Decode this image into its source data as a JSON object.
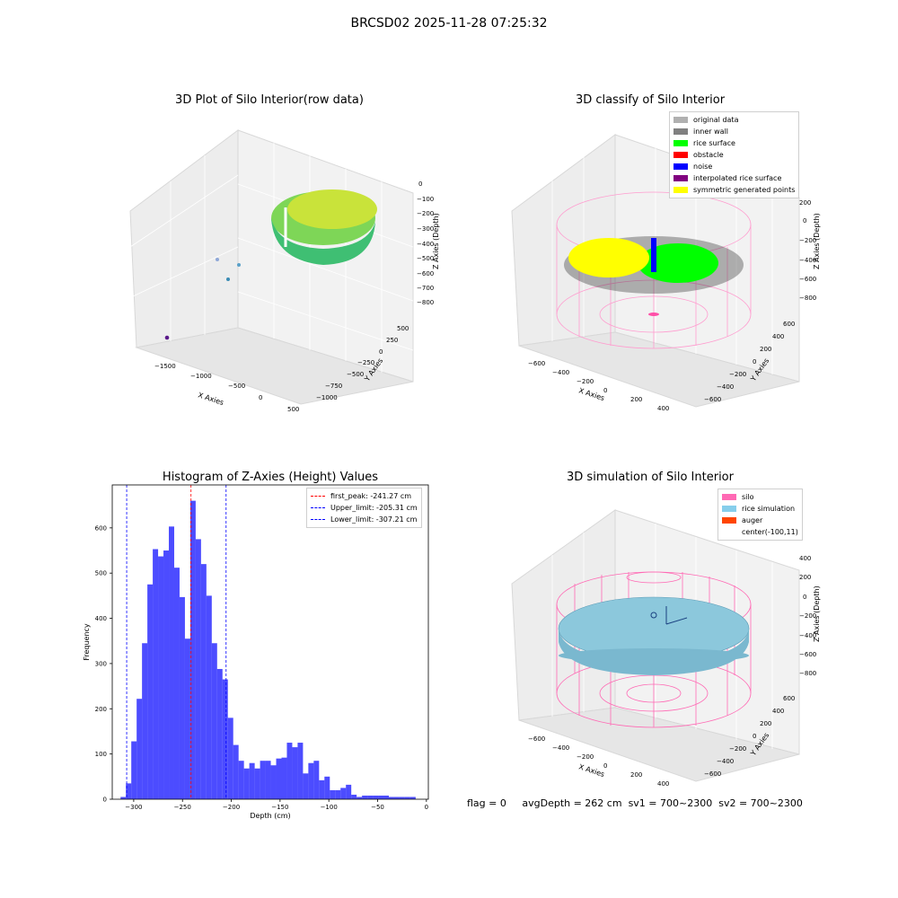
{
  "figure": {
    "suptitle": "BRCSD02 2025-11-28 07:25:32"
  },
  "panels": {
    "raw": {
      "title": "3D Plot of Silo Interior(row data)",
      "x_label": "X Axies",
      "y_label": "Y Axies",
      "z_label": "Z Axies (Depth)",
      "x_ticks": [
        "−1500",
        "−1000",
        "−500",
        "0",
        "500"
      ],
      "y_ticks": [
        "500",
        "250",
        "0",
        "−250",
        "−500",
        "−750",
        "−1000"
      ],
      "z_ticks": [
        "0",
        "−100",
        "−200",
        "−300",
        "−400",
        "−500",
        "−600",
        "−700",
        "−800"
      ]
    },
    "classify": {
      "title": "3D classify of Silo Interior",
      "x_label": "X Axies",
      "y_label": "Y Axies",
      "z_label": "Z Axies (Depth)",
      "x_ticks": [
        "−600",
        "−400",
        "−200",
        "0",
        "200",
        "400"
      ],
      "y_ticks": [
        "600",
        "400",
        "200",
        "0",
        "−200",
        "−400",
        "−600"
      ],
      "z_ticks": [
        "200",
        "0",
        "−200",
        "−400",
        "−600",
        "−800"
      ],
      "legend": [
        {
          "label": "original data",
          "color": "#b0b0b0"
        },
        {
          "label": "inner wall",
          "color": "#808080"
        },
        {
          "label": "rice surface",
          "color": "#00ff00"
        },
        {
          "label": "obstacle",
          "color": "#ff0000"
        },
        {
          "label": "noise",
          "color": "#0000ff"
        },
        {
          "label": "interpolated rice surface",
          "color": "#800080"
        },
        {
          "label": "symmetric generated points",
          "color": "#ffff00"
        }
      ]
    },
    "simulation": {
      "title": "3D simulation of Silo Interior",
      "x_label": "X Axies",
      "y_label": "Y Axies",
      "z_label": "Z Axies (Depth)",
      "x_ticks": [
        "−600",
        "−400",
        "−200",
        "0",
        "200",
        "400"
      ],
      "y_ticks": [
        "600",
        "400",
        "200",
        "0",
        "−200",
        "−400",
        "−600"
      ],
      "z_ticks": [
        "400",
        "200",
        "0",
        "−200",
        "−400",
        "−600",
        "−800"
      ],
      "legend": [
        {
          "label": "silo",
          "color": "#ff69b4"
        },
        {
          "label": "rice simulation",
          "color": "#87ceeb"
        },
        {
          "label": "auger",
          "color": "#ff4500"
        },
        {
          "label": "center(-100,11)",
          "color": ""
        }
      ]
    }
  },
  "status": {
    "flag": "flag = 0",
    "avg_depth": "avgDepth = 262 cm",
    "sv1": "sv1 = 700~2300",
    "sv2": "sv2 = 700~2300"
  },
  "chart_data": {
    "type": "bar",
    "title": "Histogram of Z-Axies (Height) Values",
    "xlabel": "Depth (cm)",
    "ylabel": "Frequency",
    "xlim": [
      -322,
      2
    ],
    "ylim": [
      0,
      695
    ],
    "x_ticks": [
      -300,
      -250,
      -200,
      -150,
      -100,
      -50,
      0
    ],
    "y_ticks": [
      0,
      100,
      200,
      300,
      400,
      500,
      600
    ],
    "bar_color": "#0000ff",
    "bin_width": 5.5,
    "bin_starts": [
      -313.5,
      -308,
      -302.5,
      -297,
      -291.5,
      -286,
      -280.5,
      -275,
      -269.5,
      -264,
      -258.5,
      -253,
      -247.5,
      -242,
      -236.5,
      -231,
      -225.5,
      -220,
      -214.5,
      -209,
      -203.5,
      -198,
      -192.5,
      -187,
      -181.5,
      -176,
      -170.5,
      -165,
      -159.5,
      -154,
      -148.5,
      -143,
      -137.5,
      -132,
      -126.5,
      -121,
      -115.5,
      -110,
      -104.5,
      -99,
      -93.5,
      -88,
      -82.5,
      -77,
      -71.5,
      -66,
      -60.5,
      -55,
      -49.5,
      -44,
      -38.5,
      -33,
      -27.5,
      -22,
      -16.5
    ],
    "values": [
      5,
      35,
      128,
      222,
      345,
      475,
      553,
      537,
      550,
      603,
      512,
      447,
      355,
      660,
      575,
      520,
      450,
      345,
      288,
      265,
      180,
      120,
      85,
      68,
      80,
      68,
      85,
      85,
      75,
      90,
      92,
      125,
      115,
      125,
      57,
      80,
      85,
      42,
      50,
      20,
      20,
      25,
      32,
      10,
      5,
      8,
      8,
      8,
      8,
      8,
      5,
      5,
      5,
      5,
      5
    ],
    "lines": [
      {
        "label": "first_peak: -241.27 cm",
        "x": -241.27,
        "color": "#ff0000"
      },
      {
        "label": "Upper_limit: -205.31 cm",
        "x": -205.31,
        "color": "#0000ff"
      },
      {
        "label": "Lower_limit: -307.21 cm",
        "x": -307.21,
        "color": "#0000ff"
      }
    ]
  }
}
